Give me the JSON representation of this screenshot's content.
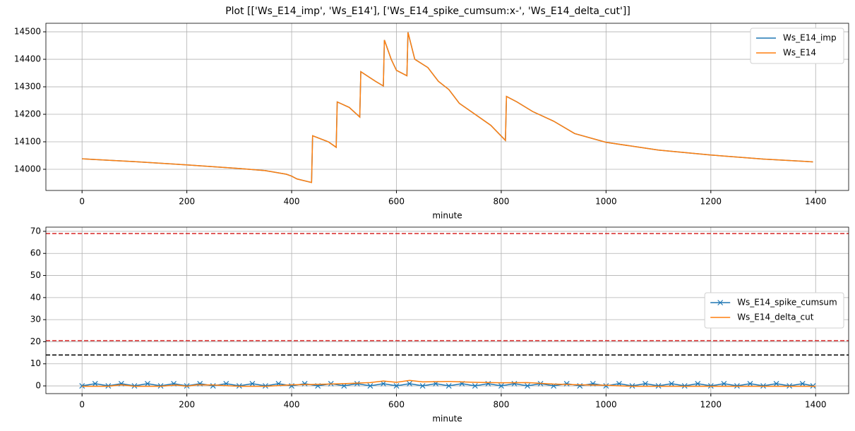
{
  "title": "Plot [['Ws_E14_imp', 'Ws_E14'], ['Ws_E14_spike_cumsum:x-', 'Ws_E14_delta_cut']]",
  "chart_data": [
    {
      "type": "line",
      "xlabel": "minute",
      "grid": true,
      "legend": "upper right",
      "xlim": [
        -69,
        1463
      ],
      "xticks": [
        0,
        200,
        400,
        600,
        800,
        1000,
        1200,
        1400
      ],
      "ylim": [
        13923,
        14531
      ],
      "yticks": [
        14000,
        14100,
        14200,
        14300,
        14400,
        14500
      ],
      "series": [
        {
          "name": "Ws_E14_imp",
          "color": "#1f77b4",
          "x": [
            0,
            100,
            200,
            300,
            350,
            390,
            400,
            410,
            438,
            440,
            470,
            485,
            487,
            510,
            530,
            532,
            560,
            575,
            577,
            590,
            600,
            620,
            622,
            635,
            660,
            680,
            700,
            720,
            750,
            780,
            808,
            810,
            830,
            860,
            900,
            940,
            1000,
            1100,
            1200,
            1300,
            1395
          ],
          "values": [
            14038,
            14028,
            14016,
            14003,
            13995,
            13982,
            13975,
            13965,
            13952,
            14122,
            14100,
            14080,
            14245,
            14225,
            14190,
            14355,
            14320,
            14303,
            14470,
            14400,
            14360,
            14340,
            14498,
            14400,
            14370,
            14320,
            14290,
            14240,
            14200,
            14160,
            14105,
            14265,
            14245,
            14210,
            14175,
            14130,
            14098,
            14070,
            14052,
            14037,
            14027
          ]
        },
        {
          "name": "Ws_E14",
          "color": "#ff7f0e",
          "x": [
            0,
            100,
            200,
            300,
            350,
            390,
            400,
            410,
            438,
            440,
            470,
            485,
            487,
            510,
            530,
            532,
            560,
            575,
            577,
            590,
            600,
            620,
            622,
            635,
            660,
            680,
            700,
            720,
            750,
            780,
            808,
            810,
            830,
            860,
            900,
            940,
            1000,
            1100,
            1200,
            1300,
            1395
          ],
          "values": [
            14038,
            14028,
            14016,
            14003,
            13995,
            13982,
            13975,
            13965,
            13952,
            14122,
            14100,
            14080,
            14245,
            14225,
            14190,
            14355,
            14320,
            14303,
            14470,
            14400,
            14360,
            14340,
            14498,
            14400,
            14370,
            14320,
            14290,
            14240,
            14200,
            14160,
            14105,
            14265,
            14245,
            14210,
            14175,
            14130,
            14098,
            14070,
            14052,
            14037,
            14027
          ]
        }
      ]
    },
    {
      "type": "line",
      "xlabel": "minute",
      "grid": true,
      "legend": "center right",
      "xlim": [
        -69,
        1463
      ],
      "xticks": [
        0,
        200,
        400,
        600,
        800,
        1000,
        1200,
        1400
      ],
      "ylim": [
        -3.5,
        71.9
      ],
      "yticks": [
        0,
        10,
        20,
        30,
        40,
        50,
        60,
        70
      ],
      "hlines": [
        {
          "value": 69,
          "color": "#d62728"
        },
        {
          "value": 20.5,
          "color": "#d62728"
        },
        {
          "value": 14,
          "color": "#000000"
        }
      ],
      "series": [
        {
          "name": "Ws_E14_spike_cumsum",
          "color": "#1f77b4",
          "marker": "x",
          "x": [
            0,
            25,
            50,
            75,
            100,
            125,
            150,
            175,
            200,
            225,
            250,
            275,
            300,
            325,
            350,
            375,
            400,
            425,
            450,
            475,
            500,
            525,
            550,
            575,
            600,
            625,
            650,
            675,
            700,
            725,
            750,
            775,
            800,
            825,
            850,
            875,
            900,
            925,
            950,
            975,
            1000,
            1025,
            1050,
            1075,
            1100,
            1125,
            1150,
            1175,
            1200,
            1225,
            1250,
            1275,
            1300,
            1325,
            1350,
            1375,
            1395
          ],
          "values": [
            0,
            1,
            0,
            1,
            0,
            1,
            0,
            1,
            0,
            1,
            0,
            1,
            0,
            1,
            0,
            1,
            0,
            1,
            0,
            1,
            0,
            1,
            0,
            1,
            0,
            1,
            0,
            1,
            0,
            1,
            0,
            1,
            0,
            1,
            0,
            1,
            0,
            1,
            0,
            1,
            0,
            1,
            0,
            1,
            0,
            1,
            0,
            1,
            0,
            1,
            0,
            1,
            0,
            1,
            0,
            1,
            0
          ]
        },
        {
          "name": "Ws_E14_delta_cut",
          "color": "#ff7f0e",
          "x": [
            0,
            50,
            75,
            100,
            150,
            180,
            200,
            220,
            250,
            300,
            350,
            400,
            450,
            500,
            550,
            575,
            600,
            625,
            650,
            700,
            750,
            800,
            850,
            900,
            950,
            1000,
            1050,
            1400
          ],
          "values": [
            -0.2,
            -0.2,
            0.5,
            -0.2,
            -0.2,
            0.4,
            -0.2,
            0.5,
            0.4,
            -0.2,
            -0.2,
            0.5,
            0.7,
            1.0,
            1.5,
            2.2,
            1.6,
            2.5,
            1.8,
            2.0,
            1.6,
            1.4,
            1.5,
            0.8,
            0.5,
            0.3,
            -0.2,
            -0.2
          ]
        }
      ]
    }
  ]
}
